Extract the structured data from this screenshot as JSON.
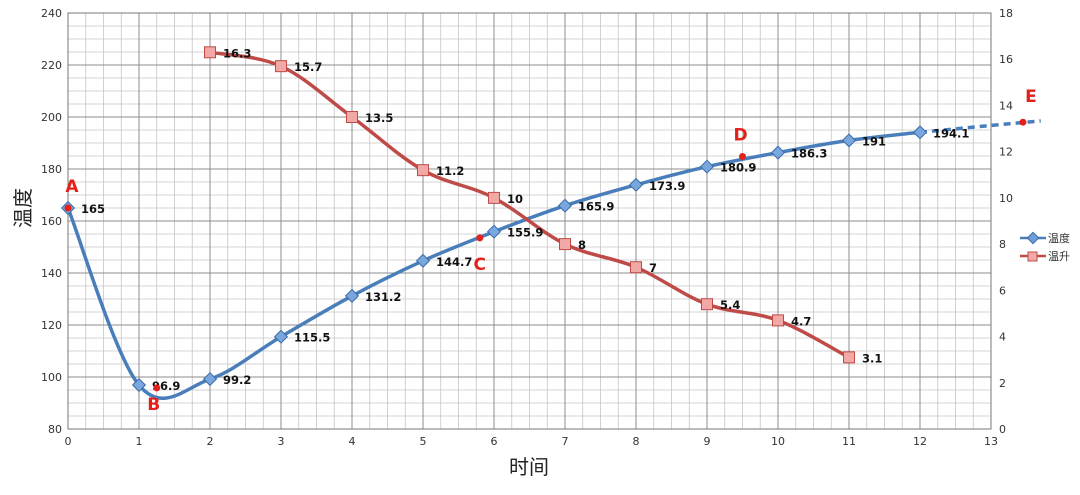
{
  "chart_data": {
    "type": "line",
    "xlabel": "时间",
    "ylabel": "温度",
    "xlim": [
      0,
      13
    ],
    "ylim": [
      80,
      240
    ],
    "y2lim": [
      0,
      18
    ],
    "x_ticks": [
      "0",
      "1",
      "2",
      "3",
      "4",
      "5",
      "6",
      "7",
      "8",
      "9",
      "10",
      "11",
      "12",
      "13"
    ],
    "y_ticks": [
      "80",
      "100",
      "120",
      "140",
      "160",
      "180",
      "200",
      "220",
      "240"
    ],
    "y2_ticks": [
      "0",
      "2",
      "4",
      "6",
      "8",
      "10",
      "12",
      "14",
      "16",
      "18"
    ],
    "grid": true,
    "legend_position": "right",
    "series": [
      {
        "name": "温度",
        "axis": "left",
        "color": "#4a7ebb",
        "x": [
          0,
          1,
          2,
          3,
          4,
          5,
          6,
          7,
          8,
          9,
          10,
          11,
          12
        ],
        "y": [
          165,
          96.9,
          99.2,
          115.5,
          131.2,
          144.7,
          155.9,
          165.9,
          173.9,
          180.9,
          186.3,
          191,
          194.1
        ],
        "labels": [
          "165",
          "96.9",
          "99.2",
          "115.5",
          "131.2",
          "144.7",
          "155.9",
          "165.9",
          "173.9",
          "180.9",
          "186.3",
          "191",
          "194.1"
        ],
        "extrapolated_to": [
          13.7,
          198.5
        ]
      },
      {
        "name": "温升",
        "axis": "right",
        "color": "#be4b48",
        "x": [
          2,
          3,
          4,
          5,
          6,
          7,
          8,
          9,
          10,
          11
        ],
        "y": [
          16.3,
          15.7,
          13.5,
          11.2,
          10,
          8,
          7,
          5.4,
          4.7,
          3.1
        ],
        "labels": [
          "16.3",
          "15.7",
          "13.5",
          "11.2",
          "10",
          "8",
          "7",
          "5.4",
          "4.7",
          "3.1"
        ]
      }
    ],
    "annotations": [
      {
        "label": "A",
        "x": 0,
        "y": 165
      },
      {
        "label": "B",
        "x": 1.25,
        "y": 95.8
      },
      {
        "label": "C",
        "x": 5.8,
        "y": 153.5
      },
      {
        "label": "D",
        "x": 9.5,
        "y": 184.8
      },
      {
        "label": "E",
        "x": 13.45,
        "y": 198
      }
    ]
  }
}
